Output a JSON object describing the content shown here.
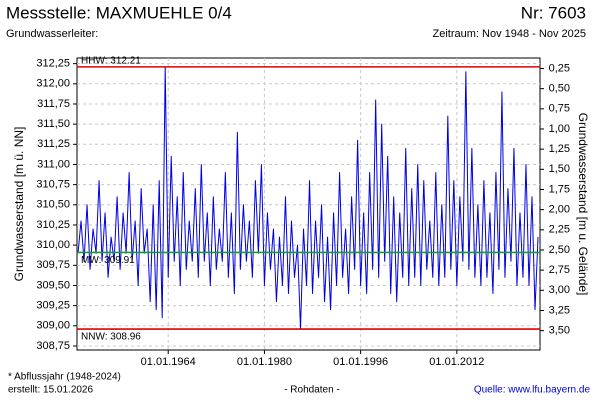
{
  "chart_data": {
    "type": "line",
    "title": "Messstelle: MAXMUEHLE 0/4",
    "title_right": "Nr: 7603",
    "subtitle": "Grundwasserleiter:",
    "subtitle_right": "Zeitraum: Nov 1948 - Nov 2025",
    "y_label": "Grundwasserstand [m ü. NN]",
    "y2_label": "Grundwasserstand [m u. Gelände]",
    "footnote": "* Abflussjahr (1948-2024)",
    "created": "erstellt:  15.01.2026",
    "data_note": "- Rohdaten -",
    "source": "Quelle: www.lfu.bayern.de",
    "xlim": [
      1948.83,
      2025.83
    ],
    "xticks": [
      {
        "value": 1964,
        "label": "01.01.1964"
      },
      {
        "value": 1980,
        "label": "01.01.1980"
      },
      {
        "value": 1996,
        "label": "01.01.1996"
      },
      {
        "value": 2012,
        "label": "01.01.2012"
      }
    ],
    "ylim": [
      308.7,
      312.32
    ],
    "yticks": [
      {
        "value": 308.75,
        "label": "308,75"
      },
      {
        "value": 309,
        "label": "309,00"
      },
      {
        "value": 309.25,
        "label": "309,25"
      },
      {
        "value": 309.5,
        "label": "309,50"
      },
      {
        "value": 309.75,
        "label": "309,75"
      },
      {
        "value": 310,
        "label": "310,00"
      },
      {
        "value": 310.25,
        "label": "310,25"
      },
      {
        "value": 310.5,
        "label": "310,50"
      },
      {
        "value": 310.75,
        "label": "310,75"
      },
      {
        "value": 311,
        "label": "311,00"
      },
      {
        "value": 311.25,
        "label": "311,25"
      },
      {
        "value": 311.5,
        "label": "311,50"
      },
      {
        "value": 311.75,
        "label": "311,75"
      },
      {
        "value": 312,
        "label": "312,00"
      },
      {
        "value": 312.25,
        "label": "312,25"
      }
    ],
    "y2lim": [
      0.12,
      3.74
    ],
    "y2ticks": [
      {
        "value": 0.25,
        "label": "0,25"
      },
      {
        "value": 0.5,
        "label": "0,50"
      },
      {
        "value": 0.75,
        "label": "0,75"
      },
      {
        "value": 1,
        "label": "1,00"
      },
      {
        "value": 1.25,
        "label": "1,25"
      },
      {
        "value": 1.5,
        "label": "1,50"
      },
      {
        "value": 1.75,
        "label": "1,75"
      },
      {
        "value": 2,
        "label": "2,00"
      },
      {
        "value": 2.25,
        "label": "2,25"
      },
      {
        "value": 2.5,
        "label": "2,50"
      },
      {
        "value": 2.75,
        "label": "2,75"
      },
      {
        "value": 3,
        "label": "3,00"
      },
      {
        "value": 3.25,
        "label": "3,25"
      },
      {
        "value": 3.5,
        "label": "3,50"
      }
    ],
    "grid": true,
    "reference_lines": [
      {
        "label": "HHW: 312.21",
        "value": 312.21,
        "color": "#e00000"
      },
      {
        "label": "MW: 309.91",
        "value": 309.91,
        "color": "#1a9a2a"
      },
      {
        "label": "NNW: 308.96",
        "value": 308.96,
        "color": "#e00000"
      }
    ],
    "series": [
      {
        "color": "#0000e0",
        "x": [
          1949,
          1949.5,
          1950,
          1950.5,
          1951,
          1951.5,
          1952,
          1952.5,
          1953,
          1953.5,
          1954,
          1954.5,
          1955,
          1955.5,
          1956,
          1956.5,
          1957,
          1957.5,
          1958,
          1958.5,
          1959,
          1959.5,
          1960,
          1960.5,
          1961,
          1961.5,
          1962,
          1962.5,
          1963,
          1963.5,
          1964,
          1964.5,
          1965,
          1965.5,
          1966,
          1966.5,
          1967,
          1967.5,
          1968,
          1968.5,
          1969,
          1969.5,
          1970,
          1970.5,
          1971,
          1971.5,
          1972,
          1972.5,
          1973,
          1973.5,
          1974,
          1974.5,
          1975,
          1975.5,
          1976,
          1976.5,
          1977,
          1977.5,
          1978,
          1978.5,
          1979,
          1979.5,
          1980,
          1980.5,
          1981,
          1981.5,
          1982,
          1982.5,
          1983,
          1983.5,
          1984,
          1984.5,
          1985,
          1985.5,
          1986,
          1986.5,
          1987,
          1987.5,
          1988,
          1988.5,
          1989,
          1989.5,
          1990,
          1990.5,
          1991,
          1991.5,
          1992,
          1992.5,
          1993,
          1993.5,
          1994,
          1994.5,
          1995,
          1995.5,
          1996,
          1996.5,
          1997,
          1997.5,
          1998,
          1998.5,
          1999,
          1999.5,
          2000,
          2000.5,
          2001,
          2001.5,
          2002,
          2002.5,
          2003,
          2003.5,
          2004,
          2004.5,
          2005,
          2005.5,
          2006,
          2006.5,
          2007,
          2007.5,
          2008,
          2008.5,
          2009,
          2009.5,
          2010,
          2010.5,
          2011,
          2011.5,
          2012,
          2012.5,
          2013,
          2013.5,
          2014,
          2014.5,
          2015,
          2015.5,
          2016,
          2016.5,
          2017,
          2017.5,
          2018,
          2018.5,
          2019,
          2019.5,
          2020,
          2020.5,
          2021,
          2021.5,
          2022,
          2022.5,
          2023,
          2023.5,
          2024,
          2024.5,
          2025,
          2025.5
        ],
        "values": [
          309.9,
          310.3,
          309.8,
          310.5,
          309.7,
          310.2,
          309.9,
          310.8,
          309.8,
          310.4,
          309.6,
          310.1,
          309.8,
          310.6,
          309.7,
          310.4,
          309.9,
          310.9,
          309.8,
          310.3,
          309.5,
          310.7,
          309.9,
          310.2,
          309.3,
          310.5,
          309.2,
          310.8,
          309.1,
          312.21,
          309.6,
          311.1,
          309.8,
          310.6,
          309.5,
          310.9,
          309.7,
          310.3,
          309.8,
          310.7,
          309.6,
          311.0,
          309.8,
          310.4,
          309.5,
          310.6,
          309.7,
          310.2,
          309.8,
          310.9,
          309.6,
          310.4,
          309.4,
          311.4,
          309.7,
          310.5,
          309.8,
          310.3,
          309.6,
          310.8,
          309.9,
          311.0,
          309.5,
          310.4,
          309.7,
          310.2,
          309.3,
          310.1,
          309.5,
          310.6,
          309.4,
          310.3,
          309.6,
          310.0,
          308.96,
          310.2,
          309.5,
          310.8,
          309.4,
          310.3,
          309.6,
          310.5,
          309.3,
          310.1,
          309.2,
          310.4,
          309.5,
          310.9,
          309.6,
          310.2,
          309.4,
          310.6,
          309.7,
          311.3,
          309.5,
          310.4,
          309.4,
          310.9,
          309.7,
          311.8,
          309.6,
          311.5,
          309.8,
          311.1,
          309.4,
          310.6,
          309.3,
          310.4,
          309.6,
          311.2,
          309.5,
          310.7,
          309.6,
          311.0,
          309.5,
          310.8,
          309.7,
          310.3,
          309.6,
          310.9,
          309.5,
          310.5,
          309.6,
          311.6,
          309.7,
          310.8,
          309.5,
          310.6,
          309.8,
          312.15,
          309.7,
          311.2,
          309.6,
          310.5,
          309.5,
          310.8,
          309.6,
          310.4,
          309.4,
          310.9,
          309.7,
          311.9,
          309.6,
          310.7,
          309.8,
          311.2,
          309.5,
          310.4,
          309.6,
          311.0,
          309.5,
          310.6,
          309.2,
          310.1
        ]
      }
    ]
  }
}
